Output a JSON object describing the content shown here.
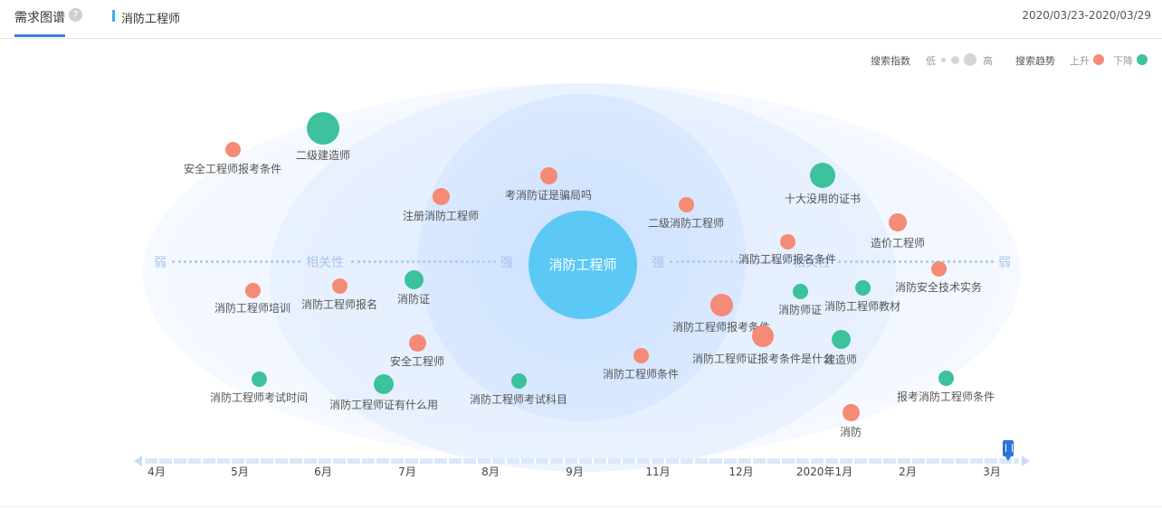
{
  "header": {
    "tab_title": "需求图谱",
    "help_icon": "question-circle-icon",
    "keyword": "消防工程师",
    "date_range": "2020/03/23-2020/03/29"
  },
  "legend": {
    "search_index_label": "搜索指数",
    "low": "低",
    "high": "高",
    "trend_label": "搜索趋势",
    "up": "上升",
    "down": "下降",
    "up_color": "#f58a76",
    "down_color": "#3cc29d"
  },
  "axis": {
    "weak": "弱",
    "relevance": "相关性",
    "strong": "强"
  },
  "center_keyword": "消防工程师",
  "nodes": [
    {
      "label": "安全工程师报考条件",
      "trend": "up"
    },
    {
      "label": "二级建造师",
      "trend": "down"
    },
    {
      "label": "注册消防工程师",
      "trend": "up"
    },
    {
      "label": "考消防证是骗局吗",
      "trend": "up"
    },
    {
      "label": "二级消防工程师",
      "trend": "up"
    },
    {
      "label": "十大没用的证书",
      "trend": "down"
    },
    {
      "label": "造价工程师",
      "trend": "up"
    },
    {
      "label": "消防工程师报名条件",
      "trend": "up"
    },
    {
      "label": "消防安全技术实务",
      "trend": "up"
    },
    {
      "label": "消防工程师培训",
      "trend": "up"
    },
    {
      "label": "消防工程师报名",
      "trend": "up"
    },
    {
      "label": "消防证",
      "trend": "down"
    },
    {
      "label": "消防师证",
      "trend": "down"
    },
    {
      "label": "消防工程师教材",
      "trend": "down"
    },
    {
      "label": "消防工程师报考条件",
      "trend": "up"
    },
    {
      "label": "安全工程师",
      "trend": "up"
    },
    {
      "label": "消防工程师证报考条件是什么",
      "trend": "up"
    },
    {
      "label": "建造师",
      "trend": "down"
    },
    {
      "label": "消防工程师条件",
      "trend": "up"
    },
    {
      "label": "消防工程师考试时间",
      "trend": "down"
    },
    {
      "label": "消防工程师证有什么用",
      "trend": "down"
    },
    {
      "label": "消防工程师考试科目",
      "trend": "down"
    },
    {
      "label": "报考消防工程师条件",
      "trend": "down"
    },
    {
      "label": "消防",
      "trend": "up"
    }
  ],
  "timeline": {
    "months": [
      "4月",
      "5月",
      "6月",
      "7月",
      "8月",
      "9月",
      "11月",
      "12月",
      "2020年1月",
      "2月",
      "3月"
    ]
  }
}
